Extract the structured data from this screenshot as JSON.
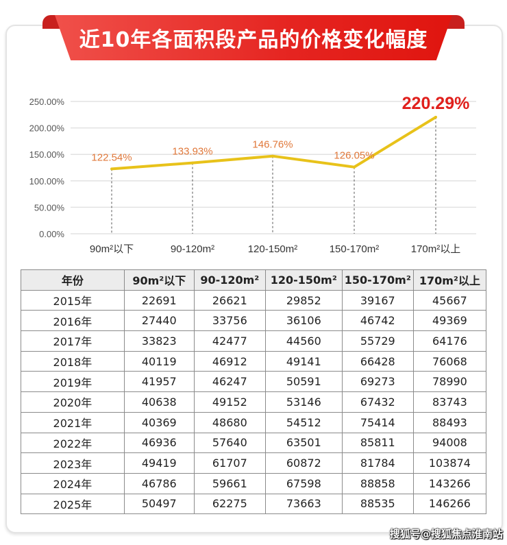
{
  "title": "近10年各面积段产品的价格变化幅度",
  "chart_data": {
    "type": "line",
    "title": "",
    "categories": [
      "90m²以下",
      "90-120m²",
      "120-150m²",
      "150-170m²",
      "170m²以上"
    ],
    "values": [
      122.54,
      133.93,
      146.76,
      126.05,
      220.29
    ],
    "data_labels": [
      "122.54%",
      "133.93%",
      "146.76%",
      "126.05%",
      "220.29%"
    ],
    "y_ticks": [
      "0.00%",
      "50.00%",
      "100.00%",
      "150.00%",
      "200.00%",
      "250.00%"
    ],
    "ylim": [
      0,
      250
    ],
    "grid": true,
    "line_color": "#e8c21a",
    "label_color": "#e0783a",
    "highlight_label_color": "#e0201c"
  },
  "table": {
    "headers": [
      "年份",
      "90m²以下",
      "90-120m²",
      "120-150m²",
      "150-170m²",
      "170m²以上"
    ],
    "rows": [
      [
        "2015年",
        "22691",
        "26621",
        "29852",
        "39167",
        "45667"
      ],
      [
        "2016年",
        "27440",
        "33756",
        "36106",
        "46742",
        "49369"
      ],
      [
        "2017年",
        "33823",
        "42477",
        "44560",
        "55729",
        "64176"
      ],
      [
        "2018年",
        "40119",
        "46912",
        "49141",
        "66428",
        "76068"
      ],
      [
        "2019年",
        "41957",
        "46247",
        "50591",
        "69273",
        "78990"
      ],
      [
        "2020年",
        "40638",
        "49152",
        "53146",
        "67432",
        "83743"
      ],
      [
        "2021年",
        "40369",
        "48680",
        "54512",
        "75414",
        "88493"
      ],
      [
        "2022年",
        "46936",
        "57640",
        "63501",
        "85811",
        "94008"
      ],
      [
        "2023年",
        "49419",
        "61707",
        "60872",
        "81784",
        "103874"
      ],
      [
        "2024年",
        "46786",
        "59661",
        "67598",
        "88858",
        "143266"
      ],
      [
        "2025年",
        "50497",
        "62275",
        "73663",
        "88535",
        "146266"
      ]
    ]
  },
  "watermark": "搜狐号@搜狐焦点淮南站"
}
